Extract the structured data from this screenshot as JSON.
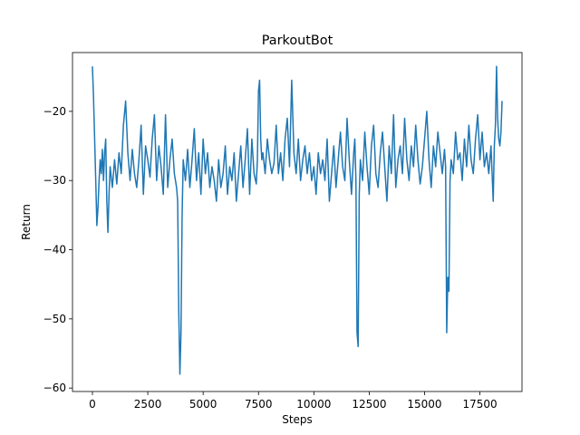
{
  "chart_data": {
    "type": "line",
    "title": "ParkoutBot",
    "xlabel": "Steps",
    "ylabel": "Return",
    "xlim": [
      -900,
      19400
    ],
    "ylim": [
      -60.5,
      -11.5
    ],
    "xticks": [
      0,
      2500,
      5000,
      7500,
      10000,
      12500,
      15000,
      17500
    ],
    "yticks": [
      -60,
      -50,
      -40,
      -30,
      -20
    ],
    "grid": false,
    "legend": "none",
    "line_color": "#1f77b4",
    "series": [
      {
        "x": [
          0,
          50,
          100,
          150,
          200,
          250,
          300,
          350,
          400,
          450,
          500,
          550,
          600,
          650,
          700,
          750,
          800,
          900,
          1000,
          1100,
          1200,
          1300,
          1400,
          1500,
          1600,
          1700,
          1800,
          1900,
          2000,
          2100,
          2200,
          2300,
          2400,
          2500,
          2600,
          2700,
          2800,
          2900,
          3000,
          3100,
          3200,
          3300,
          3400,
          3500,
          3600,
          3700,
          3800,
          3850,
          3900,
          3950,
          4000,
          4050,
          4100,
          4200,
          4300,
          4400,
          4500,
          4600,
          4700,
          4800,
          4900,
          5000,
          5100,
          5200,
          5300,
          5400,
          5500,
          5600,
          5700,
          5800,
          5900,
          6000,
          6100,
          6200,
          6300,
          6400,
          6500,
          6600,
          6700,
          6800,
          6900,
          7000,
          7100,
          7200,
          7300,
          7400,
          7450,
          7500,
          7550,
          7600,
          7650,
          7700,
          7800,
          7900,
          8000,
          8100,
          8200,
          8300,
          8400,
          8500,
          8600,
          8700,
          8800,
          8900,
          9000,
          9100,
          9200,
          9300,
          9400,
          9500,
          9600,
          9700,
          9800,
          9900,
          10000,
          10100,
          10200,
          10300,
          10400,
          10500,
          10600,
          10700,
          10800,
          10900,
          11000,
          11100,
          11200,
          11300,
          11400,
          11500,
          11600,
          11700,
          11800,
          11850,
          11900,
          11950,
          12000,
          12050,
          12100,
          12200,
          12300,
          12400,
          12500,
          12600,
          12700,
          12800,
          12900,
          13000,
          13100,
          13200,
          13300,
          13400,
          13500,
          13600,
          13700,
          13800,
          13900,
          14000,
          14100,
          14200,
          14300,
          14400,
          14500,
          14600,
          14700,
          14800,
          14900,
          15000,
          15100,
          15200,
          15300,
          15400,
          15500,
          15600,
          15700,
          15800,
          15900,
          15950,
          16000,
          16050,
          16100,
          16150,
          16200,
          16300,
          16400,
          16500,
          16600,
          16700,
          16800,
          16900,
          17000,
          17100,
          17200,
          17300,
          17400,
          17500,
          17600,
          17700,
          17800,
          17900,
          18000,
          18100,
          18150,
          18200,
          18250,
          18300,
          18350,
          18400,
          18450,
          18500
        ],
        "y": [
          -13.5,
          -18,
          -24,
          -30,
          -36.5,
          -34,
          -30,
          -27,
          -29,
          -25.5,
          -30,
          -26,
          -24,
          -33,
          -37.5,
          -32,
          -28,
          -31,
          -27,
          -30.5,
          -26,
          -29,
          -22,
          -18.5,
          -26,
          -30,
          -25.5,
          -29,
          -31,
          -27,
          -22,
          -32,
          -25,
          -27,
          -29.5,
          -24,
          -20.5,
          -30,
          -25,
          -28,
          -32,
          -20.5,
          -31,
          -27,
          -24,
          -29,
          -31,
          -33,
          -49,
          -58,
          -52,
          -35,
          -27,
          -30,
          -25.5,
          -31,
          -27,
          -22.5,
          -30,
          -26,
          -32,
          -24,
          -29,
          -26,
          -31,
          -28,
          -30,
          -33,
          -27,
          -31,
          -29,
          -25,
          -32,
          -28,
          -30,
          -26,
          -33,
          -29,
          -25,
          -31,
          -27,
          -22.5,
          -32,
          -24,
          -29,
          -30.5,
          -27,
          -17,
          -15.5,
          -24,
          -27,
          -26,
          -29,
          -24,
          -27,
          -29,
          -27.5,
          -22,
          -29,
          -26,
          -30,
          -24,
          -21,
          -28,
          -15.5,
          -26,
          -29,
          -24,
          -30,
          -27,
          -25,
          -29,
          -26,
          -30,
          -28,
          -32,
          -26,
          -29,
          -27,
          -30,
          -24,
          -33,
          -29,
          -25,
          -31,
          -27,
          -23,
          -28,
          -30,
          -21,
          -27,
          -32,
          -26,
          -24,
          -30,
          -52,
          -54,
          -32,
          -27,
          -30,
          -23,
          -28,
          -32,
          -25,
          -22,
          -29,
          -31,
          -26,
          -23,
          -28,
          -33,
          -25,
          -29,
          -20.5,
          -31,
          -27,
          -25,
          -29,
          -21,
          -27,
          -30,
          -25,
          -28,
          -22,
          -27,
          -30.5,
          -28,
          -24,
          -20,
          -27,
          -31,
          -25,
          -28,
          -23,
          -26,
          -29,
          -25.5,
          -28,
          -52,
          -44,
          -46,
          -30,
          -27,
          -29,
          -23,
          -27,
          -26,
          -30,
          -24,
          -28,
          -22,
          -27,
          -29,
          -24,
          -20.5,
          -27,
          -23,
          -28,
          -26,
          -29,
          -25,
          -33,
          -25,
          -22,
          -13.5,
          -21,
          -24,
          -25,
          -23,
          -18.5
        ]
      }
    ]
  }
}
